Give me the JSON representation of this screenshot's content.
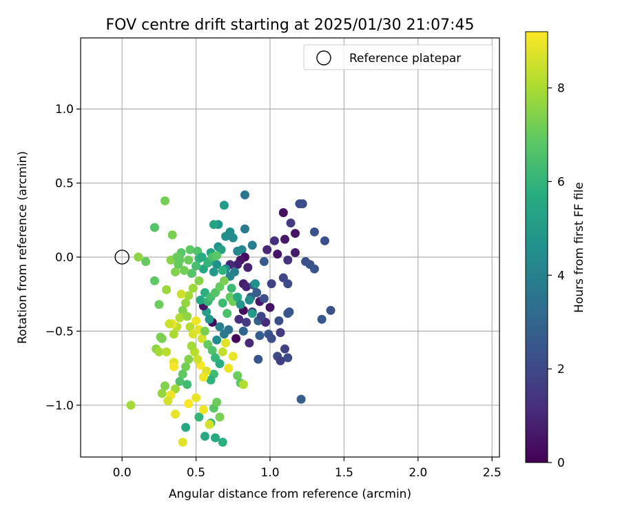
{
  "chart_data": {
    "type": "scatter",
    "title": "FOV centre drift starting at 2025/01/30 21:07:45",
    "xlabel": "Angular distance from reference (arcmin)",
    "ylabel": "Rotation from reference (arcmin)",
    "xlim": [
      -0.28,
      2.55
    ],
    "ylim": [
      -1.35,
      1.48
    ],
    "xticks": [
      0.0,
      0.5,
      1.0,
      1.5,
      2.0,
      2.5
    ],
    "xtick_labels": [
      "0.0",
      "0.5",
      "1.0",
      "1.5",
      "2.0",
      "2.5"
    ],
    "yticks": [
      -1.0,
      -0.5,
      0.0,
      0.5,
      1.0
    ],
    "ytick_labels": [
      "−1.0",
      "−0.5",
      "0.0",
      "0.5",
      "1.0"
    ],
    "grid": true,
    "legend_position": "top-right",
    "colormap": "viridis",
    "colorbar": {
      "label": "Hours from first FF file",
      "min": 0,
      "max": 9.2,
      "ticks": [
        0,
        2,
        4,
        6,
        8
      ],
      "tick_labels": [
        "0",
        "2",
        "4",
        "6",
        "8"
      ]
    },
    "reference": {
      "name": "Reference platepar",
      "x": 0.0,
      "y": 0.0,
      "marker": "open-circle"
    },
    "points": [
      [
        1.09,
        0.3,
        0.4
      ],
      [
        1.14,
        0.23,
        1.6
      ],
      [
        1.17,
        0.16,
        0.5
      ],
      [
        1.2,
        0.36,
        2.1
      ],
      [
        1.22,
        0.36,
        2.2
      ],
      [
        1.3,
        0.17,
        2.3
      ],
      [
        1.37,
        0.11,
        2.2
      ],
      [
        1.1,
        0.12,
        0.6
      ],
      [
        0.98,
        0.05,
        1.0
      ],
      [
        1.03,
        0.11,
        1.2
      ],
      [
        1.05,
        0.02,
        0.5
      ],
      [
        1.17,
        0.03,
        0.7
      ],
      [
        1.12,
        -0.02,
        1.4
      ],
      [
        1.24,
        -0.03,
        2.2
      ],
      [
        1.27,
        -0.05,
        2.3
      ],
      [
        1.3,
        -0.08,
        2.4
      ],
      [
        1.09,
        -0.14,
        1.9
      ],
      [
        1.12,
        -0.18,
        2.1
      ],
      [
        1.01,
        -0.18,
        1.8
      ],
      [
        0.96,
        -0.03,
        2.6
      ],
      [
        0.83,
        0.42,
        3.6
      ],
      [
        0.83,
        0.19,
        3.7
      ],
      [
        0.88,
        0.08,
        3.9
      ],
      [
        0.81,
        0.05,
        4.2
      ],
      [
        0.78,
        0.04,
        4.3
      ],
      [
        0.7,
        0.14,
        4.6
      ],
      [
        0.73,
        0.17,
        4.5
      ],
      [
        0.65,
        0.22,
        4.8
      ],
      [
        0.69,
        0.35,
        5.0
      ],
      [
        0.62,
        0.22,
        5.3
      ],
      [
        0.75,
        0.13,
        4.4
      ],
      [
        0.65,
        0.07,
        4.7
      ],
      [
        0.67,
        0.05,
        5.2
      ],
      [
        0.6,
        0.03,
        5.4
      ],
      [
        0.83,
        0.0,
        0.3
      ],
      [
        0.8,
        -0.02,
        0.5
      ],
      [
        0.78,
        -0.05,
        0.8
      ],
      [
        0.73,
        -0.05,
        1.1
      ],
      [
        0.85,
        -0.07,
        0.9
      ],
      [
        0.76,
        -0.1,
        3.9
      ],
      [
        0.73,
        -0.13,
        4.1
      ],
      [
        0.7,
        -0.08,
        4.3
      ],
      [
        0.64,
        -0.05,
        4.6
      ],
      [
        0.62,
        -0.1,
        4.9
      ],
      [
        0.59,
        -0.03,
        5.2
      ],
      [
        0.55,
        -0.08,
        5.5
      ],
      [
        0.52,
        -0.01,
        6.0
      ],
      [
        0.5,
        -0.06,
        6.4
      ],
      [
        0.47,
        -0.11,
        6.7
      ],
      [
        0.45,
        -0.02,
        7.1
      ],
      [
        0.42,
        -0.09,
        7.2
      ],
      [
        0.4,
        0.03,
        6.8
      ],
      [
        0.38,
        -0.05,
        7.0
      ],
      [
        0.36,
        -0.1,
        7.4
      ],
      [
        0.33,
        -0.02,
        7.5
      ],
      [
        0.82,
        -0.18,
        0.7
      ],
      [
        0.84,
        -0.2,
        0.9
      ],
      [
        0.89,
        -0.19,
        2.5
      ],
      [
        0.91,
        -0.24,
        2.7
      ],
      [
        0.87,
        -0.27,
        2.9
      ],
      [
        0.93,
        -0.3,
        0.6
      ],
      [
        0.88,
        -0.37,
        1.4
      ],
      [
        0.82,
        -0.36,
        0.3
      ],
      [
        0.79,
        -0.42,
        1.2
      ],
      [
        0.84,
        -0.44,
        1.6
      ],
      [
        0.92,
        -0.43,
        2.9
      ],
      [
        1.0,
        -0.34,
        0.5
      ],
      [
        0.97,
        -0.44,
        1.1
      ],
      [
        1.06,
        -0.43,
        2.2
      ],
      [
        1.12,
        -0.38,
        2.5
      ],
      [
        1.13,
        -0.37,
        2.4
      ],
      [
        1.35,
        -0.42,
        2.5
      ],
      [
        1.41,
        -0.36,
        2.3
      ],
      [
        0.99,
        -0.52,
        2.4
      ],
      [
        1.07,
        -0.51,
        1.6
      ],
      [
        1.01,
        -0.55,
        2.2
      ],
      [
        1.1,
        -0.62,
        1.8
      ],
      [
        1.12,
        -0.68,
        2.1
      ],
      [
        1.05,
        -0.67,
        2.1
      ],
      [
        1.07,
        -0.7,
        1.7
      ],
      [
        0.92,
        -0.69,
        2.4
      ],
      [
        0.93,
        -0.53,
        2.7
      ],
      [
        0.86,
        -0.58,
        1.1
      ],
      [
        0.82,
        -0.5,
        3.0
      ],
      [
        0.77,
        -0.55,
        0.2
      ],
      [
        0.72,
        -0.49,
        3.5
      ],
      [
        0.69,
        -0.52,
        3.7
      ],
      [
        0.66,
        -0.47,
        4.0
      ],
      [
        0.64,
        -0.56,
        4.4
      ],
      [
        0.61,
        -0.44,
        0.3
      ],
      [
        0.59,
        -0.42,
        4.8
      ],
      [
        0.57,
        -0.37,
        5.2
      ],
      [
        0.55,
        -0.33,
        0.6
      ],
      [
        0.53,
        -0.29,
        5.5
      ],
      [
        0.56,
        -0.24,
        5.8
      ],
      [
        0.58,
        -0.3,
        6.1
      ],
      [
        0.6,
        -0.27,
        6.4
      ],
      [
        0.63,
        -0.24,
        6.7
      ],
      [
        0.66,
        -0.2,
        7.0
      ],
      [
        0.69,
        -0.16,
        7.3
      ],
      [
        0.73,
        -0.27,
        6.9
      ],
      [
        0.75,
        -0.3,
        7.2
      ],
      [
        0.71,
        -0.38,
        6.5
      ],
      [
        0.68,
        -0.31,
        6.2
      ],
      [
        0.52,
        -0.16,
        7.5
      ],
      [
        0.48,
        -0.21,
        7.8
      ],
      [
        0.45,
        -0.26,
        7.9
      ],
      [
        0.43,
        -0.31,
        7.7
      ],
      [
        0.41,
        -0.36,
        7.4
      ],
      [
        0.39,
        -0.41,
        8.1
      ],
      [
        0.37,
        -0.47,
        8.3
      ],
      [
        0.35,
        -0.52,
        8.0
      ],
      [
        0.4,
        -0.25,
        8.5
      ],
      [
        0.34,
        -0.45,
        8.9
      ],
      [
        0.44,
        -0.4,
        7.6
      ],
      [
        0.46,
        -0.47,
        8.2
      ],
      [
        0.48,
        -0.52,
        8.7
      ],
      [
        0.5,
        -0.43,
        9.0
      ],
      [
        0.52,
        -0.49,
        8.8
      ],
      [
        0.54,
        -0.55,
        8.6
      ],
      [
        0.56,
        -0.5,
        7.3
      ],
      [
        0.58,
        -0.59,
        7.0
      ],
      [
        0.61,
        -0.63,
        6.6
      ],
      [
        0.63,
        -0.68,
        6.1
      ],
      [
        0.66,
        -0.72,
        5.7
      ],
      [
        0.68,
        -0.64,
        8.4
      ],
      [
        0.7,
        -0.58,
        8.8
      ],
      [
        0.72,
        -0.75,
        9.0
      ],
      [
        0.75,
        -0.67,
        8.9
      ],
      [
        0.78,
        -0.8,
        7.1
      ],
      [
        0.8,
        -0.85,
        6.8
      ],
      [
        0.82,
        -0.86,
        8.1
      ],
      [
        0.62,
        -0.79,
        6.3
      ],
      [
        0.6,
        -0.83,
        5.9
      ],
      [
        0.57,
        -0.77,
        8.7
      ],
      [
        0.55,
        -0.81,
        9.0
      ],
      [
        0.53,
        -0.73,
        9.1
      ],
      [
        0.51,
        -0.69,
        8.5
      ],
      [
        0.49,
        -0.64,
        8.2
      ],
      [
        0.47,
        -0.6,
        7.9
      ],
      [
        0.45,
        -0.69,
        7.5
      ],
      [
        0.43,
        -0.74,
        7.2
      ],
      [
        0.41,
        -0.79,
        6.9
      ],
      [
        0.39,
        -0.84,
        6.6
      ],
      [
        0.36,
        -0.89,
        7.8
      ],
      [
        0.33,
        -0.93,
        9.0
      ],
      [
        0.31,
        -0.97,
        8.6
      ],
      [
        0.29,
        -0.87,
        7.4
      ],
      [
        0.27,
        -0.92,
        7.7
      ],
      [
        0.23,
        -0.62,
        7.6
      ],
      [
        0.25,
        -0.64,
        7.9
      ],
      [
        0.27,
        -0.55,
        7.2
      ],
      [
        0.3,
        -0.64,
        8.2
      ],
      [
        0.32,
        -0.45,
        8.5
      ],
      [
        0.35,
        -0.71,
        8.8
      ],
      [
        0.35,
        -0.74,
        9.1
      ],
      [
        0.36,
        -1.06,
        8.9
      ],
      [
        0.41,
        -1.25,
        8.8
      ],
      [
        0.43,
        -1.15,
        5.5
      ],
      [
        0.45,
        -0.99,
        9.1
      ],
      [
        0.5,
        -0.95,
        8.9
      ],
      [
        0.52,
        -1.08,
        6.0
      ],
      [
        0.55,
        -1.03,
        9.0
      ],
      [
        0.56,
        -1.21,
        5.5
      ],
      [
        0.6,
        -1.12,
        6.2
      ],
      [
        0.62,
        -1.02,
        6.8
      ],
      [
        0.63,
        -1.22,
        5.6
      ],
      [
        0.64,
        -0.98,
        7.1
      ],
      [
        0.66,
        -1.08,
        7.3
      ],
      [
        0.68,
        -1.25,
        5.8
      ],
      [
        0.59,
        -1.13,
        8.6
      ],
      [
        0.06,
        -1.0,
        7.9
      ],
      [
        0.11,
        0.0,
        7.6
      ],
      [
        0.16,
        -0.03,
        7.0
      ],
      [
        0.22,
        -0.16,
        6.9
      ],
      [
        0.22,
        0.2,
        6.7
      ],
      [
        0.29,
        0.38,
        7.2
      ],
      [
        0.34,
        0.15,
        7.3
      ],
      [
        0.37,
        0.0,
        7.1
      ],
      [
        0.39,
        -0.02,
        7.0
      ],
      [
        0.3,
        -0.22,
        7.8
      ],
      [
        0.25,
        -0.32,
        7.1
      ],
      [
        0.26,
        -0.54,
        7.3
      ],
      [
        0.46,
        0.05,
        6.9
      ],
      [
        0.51,
        0.04,
        6.6
      ],
      [
        0.54,
        0.0,
        5.6
      ],
      [
        0.58,
        -0.04,
        6.0
      ],
      [
        0.61,
        0.0,
        6.5
      ],
      [
        0.64,
        0.01,
        6.8
      ],
      [
        0.68,
        -0.09,
        5.9
      ],
      [
        0.74,
        -0.21,
        6.2
      ],
      [
        0.78,
        -0.27,
        5.5
      ],
      [
        0.8,
        -0.32,
        4.8
      ],
      [
        0.86,
        -0.29,
        4.5
      ],
      [
        0.88,
        -0.38,
        4.9
      ],
      [
        0.9,
        -0.18,
        4.6
      ],
      [
        0.94,
        -0.4,
        1.9
      ],
      [
        0.96,
        -0.28,
        2.2
      ],
      [
        1.21,
        -0.96,
        2.7
      ],
      [
        0.44,
        -0.86,
        6.3
      ]
    ]
  }
}
